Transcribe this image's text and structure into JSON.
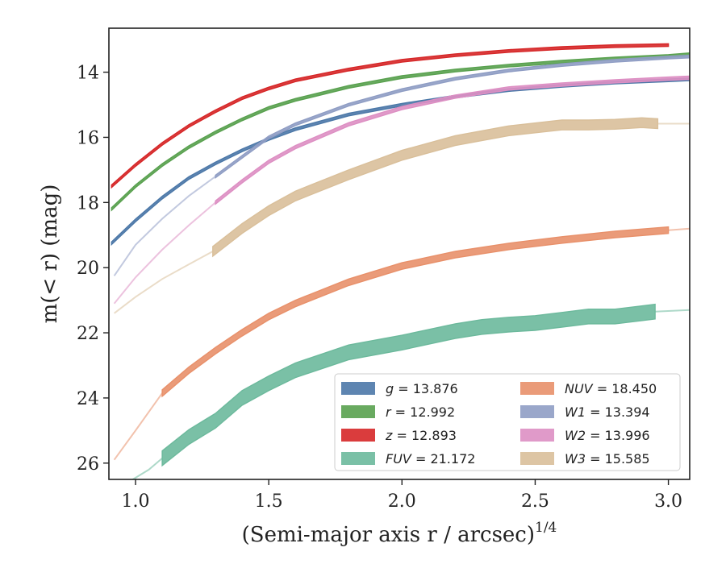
{
  "chart_data": {
    "type": "line",
    "xlabel": "(Semi-major axis r / arcsec)",
    "xlabel_superscript": "1/4",
    "ylabel": "m(< r) (mag)",
    "xlim": [
      0.9,
      3.08
    ],
    "ylim": [
      26.5,
      12.65
    ],
    "y_inverted": true,
    "xticks": [
      "1.0",
      "1.5",
      "2.0",
      "2.5",
      "3.0"
    ],
    "yticks": [
      "14",
      "16",
      "18",
      "20",
      "22",
      "24",
      "26"
    ],
    "grid": false,
    "legend_position": "lower-right",
    "series": [
      {
        "name": "g = 13.876",
        "color": "#4c78a8",
        "x": [
          0.91,
          1.0,
          1.1,
          1.2,
          1.3,
          1.4,
          1.5,
          1.6,
          1.8,
          2.0,
          2.2,
          2.4,
          2.6,
          2.8,
          3.0,
          3.08
        ],
        "y": [
          19.25,
          18.55,
          17.85,
          17.25,
          16.8,
          16.4,
          16.05,
          15.75,
          15.3,
          15.0,
          14.75,
          14.55,
          14.42,
          14.32,
          14.25,
          14.22
        ],
        "band": 0.08
      },
      {
        "name": "r = 12.992",
        "color": "#59a14f",
        "x": [
          0.91,
          1.0,
          1.1,
          1.2,
          1.3,
          1.4,
          1.5,
          1.6,
          1.8,
          2.0,
          2.2,
          2.4,
          2.6,
          2.8,
          3.0,
          3.08
        ],
        "y": [
          18.2,
          17.5,
          16.85,
          16.3,
          15.85,
          15.45,
          15.1,
          14.85,
          14.45,
          14.15,
          13.95,
          13.8,
          13.68,
          13.58,
          13.5,
          13.45
        ],
        "band": 0.08
      },
      {
        "name": "z = 12.893",
        "color": "#d62728",
        "x": [
          0.91,
          1.0,
          1.1,
          1.2,
          1.3,
          1.4,
          1.5,
          1.6,
          1.8,
          2.0,
          2.2,
          2.4,
          2.6,
          2.8,
          3.0
        ],
        "y": [
          17.5,
          16.85,
          16.2,
          15.65,
          15.2,
          14.8,
          14.5,
          14.25,
          13.92,
          13.65,
          13.48,
          13.35,
          13.26,
          13.2,
          13.17
        ],
        "band": 0.08
      },
      {
        "name": "FUV = 21.172",
        "color": "#6cb99c",
        "x": [
          1.1,
          1.2,
          1.3,
          1.4,
          1.5,
          1.6,
          1.8,
          2.0,
          2.2,
          2.3,
          2.4,
          2.5,
          2.6,
          2.7,
          2.8,
          2.9,
          2.95
        ],
        "y": [
          25.85,
          25.2,
          24.7,
          24.0,
          23.55,
          23.15,
          22.6,
          22.3,
          21.95,
          21.82,
          21.75,
          21.7,
          21.6,
          21.5,
          21.5,
          21.4,
          21.35
        ],
        "band": 0.45,
        "fade_before": [
          [
            0.97,
            26.6
          ],
          [
            1.05,
            26.2
          ],
          [
            1.1,
            25.85
          ]
        ],
        "fade_after": [
          [
            2.95,
            21.35
          ],
          [
            3.08,
            21.3
          ]
        ]
      },
      {
        "name": "NUV = 18.450",
        "color": "#e8906a",
        "x": [
          1.1,
          1.2,
          1.3,
          1.4,
          1.5,
          1.6,
          1.8,
          2.0,
          2.2,
          2.4,
          2.6,
          2.8,
          3.0
        ],
        "y": [
          23.85,
          23.15,
          22.55,
          22.0,
          21.5,
          21.1,
          20.45,
          19.95,
          19.6,
          19.35,
          19.15,
          18.98,
          18.85
        ],
        "band": 0.2,
        "fade_before": [
          [
            0.92,
            25.9
          ],
          [
            1.0,
            25.0
          ],
          [
            1.1,
            23.85
          ]
        ],
        "fade_after": [
          [
            3.0,
            18.85
          ],
          [
            3.08,
            18.8
          ]
        ]
      },
      {
        "name": "W1 = 13.394",
        "color": "#8f9dc4",
        "x": [
          1.3,
          1.4,
          1.5,
          1.6,
          1.8,
          2.0,
          2.2,
          2.4,
          2.6,
          2.8,
          3.0,
          3.08
        ],
        "y": [
          17.2,
          16.6,
          16.0,
          15.6,
          15.0,
          14.55,
          14.2,
          13.95,
          13.78,
          13.65,
          13.55,
          13.52
        ],
        "band": 0.08,
        "fade_before": [
          [
            0.92,
            20.25
          ],
          [
            1.0,
            19.3
          ],
          [
            1.1,
            18.5
          ],
          [
            1.2,
            17.8
          ],
          [
            1.3,
            17.2
          ]
        ]
      },
      {
        "name": "W2 = 13.996",
        "color": "#dd8fc3",
        "x": [
          1.3,
          1.4,
          1.5,
          1.6,
          1.8,
          2.0,
          2.2,
          2.4,
          2.6,
          2.8,
          3.0,
          3.08
        ],
        "y": [
          18.0,
          17.35,
          16.75,
          16.3,
          15.6,
          15.1,
          14.75,
          14.5,
          14.38,
          14.28,
          14.2,
          14.17
        ],
        "band": 0.1,
        "fade_before": [
          [
            0.92,
            21.1
          ],
          [
            1.0,
            20.3
          ],
          [
            1.1,
            19.45
          ],
          [
            1.2,
            18.7
          ],
          [
            1.3,
            18.0
          ]
        ]
      },
      {
        "name": "W3 = 15.585",
        "color": "#d9bf9a",
        "x": [
          1.29,
          1.4,
          1.5,
          1.6,
          1.8,
          2.0,
          2.2,
          2.4,
          2.6,
          2.7,
          2.8,
          2.9,
          2.96
        ],
        "y": [
          19.5,
          18.8,
          18.25,
          17.8,
          17.15,
          16.55,
          16.1,
          15.8,
          15.62,
          15.62,
          15.6,
          15.55,
          15.58
        ],
        "band": 0.3,
        "fade_before": [
          [
            0.92,
            21.4
          ],
          [
            1.0,
            20.9
          ],
          [
            1.1,
            20.35
          ],
          [
            1.2,
            19.9
          ],
          [
            1.29,
            19.5
          ]
        ],
        "fade_after": [
          [
            2.96,
            15.58
          ],
          [
            3.08,
            15.58
          ]
        ]
      }
    ]
  }
}
